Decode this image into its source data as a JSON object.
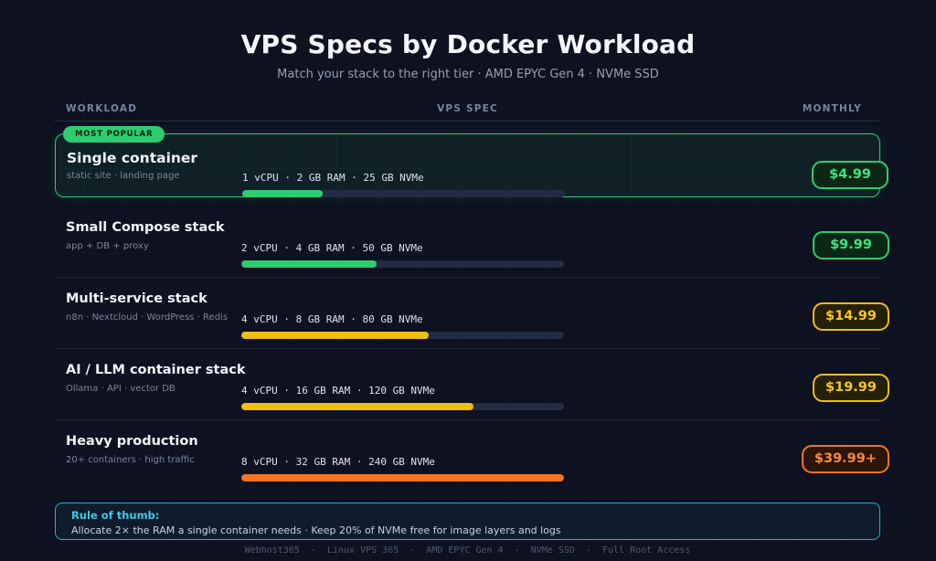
{
  "page": {
    "title": "VPS Specs by Docker Workload",
    "subtitle": "Match your stack to the right tier · AMD EPYC Gen 4 · NVMe SSD",
    "footer": "Webhost365  ·  Linux VPS 365  ·  AMD EPYC Gen 4  ·  NVMe SSD  ·  Full Root Access"
  },
  "table": {
    "headers": {
      "workload": "WORKLOAD",
      "spec": "VPS SPEC",
      "monthly": "MONTHLY"
    },
    "rows": [
      {
        "badge": "MOST POPULAR",
        "name": "Single container",
        "description": "static site · landing page",
        "spec": "1 vCPU · 2 GB RAM · 25 GB NVMe",
        "price": "$4.99",
        "bar_percent": 25,
        "tier": "green",
        "featured": true
      },
      {
        "name": "Small Compose stack",
        "description": "app + DB + proxy",
        "spec": "2 vCPU · 4 GB RAM · 50 GB NVMe",
        "price": "$9.99",
        "bar_percent": 42,
        "tier": "green",
        "featured": false
      },
      {
        "name": "Multi-service stack",
        "description": "n8n · Nextcloud · WordPress · Redis",
        "spec": "4 vCPU · 8 GB RAM · 80 GB NVMe",
        "price": "$14.99",
        "bar_percent": 58,
        "tier": "gold",
        "featured": false
      },
      {
        "name": "AI / LLM container stack",
        "description": "Ollama · API · vector DB",
        "spec": "4 vCPU · 16 GB RAM · 120 GB NVMe",
        "price": "$19.99",
        "bar_percent": 72,
        "tier": "gold",
        "featured": false
      },
      {
        "name": "Heavy production",
        "description": "20+ containers · high traffic",
        "spec": "8 vCPU · 32 GB RAM · 240 GB NVMe",
        "price": "$39.99+",
        "bar_percent": 100,
        "tier": "orange",
        "featured": false
      }
    ]
  },
  "note": {
    "title": "Rule of thumb:",
    "body": "Allocate 2× the RAM a single container needs · Keep 20% of NVMe free for image layers and logs"
  },
  "colors": {
    "green": "#2ecc71",
    "gold": "#eebe13",
    "orange": "#f5741d",
    "green_text": "#3de47e",
    "gold_text": "#f6c71c",
    "orange_text": "#fb8a38",
    "green_bg": "#0b2817",
    "gold_bg": "#262007",
    "orange_bg": "#2a1507"
  },
  "chart_data": {
    "type": "table",
    "title": "VPS Specs by Docker Workload",
    "subtitle": "Match your stack to the right tier · AMD EPYC Gen 4 · NVMe SSD",
    "columns": [
      "WORKLOAD",
      "VPS SPEC",
      "MONTHLY"
    ],
    "rows": [
      {
        "workload": "Single container",
        "use_case": "static site · landing page",
        "vcpu": 1,
        "ram_gb": 2,
        "nvme_gb": 25,
        "monthly_usd": 4.99,
        "bar_percent": 25,
        "bar_color": "#2ecc71",
        "most_popular": true
      },
      {
        "workload": "Small Compose stack",
        "use_case": "app + DB + proxy",
        "vcpu": 2,
        "ram_gb": 4,
        "nvme_gb": 50,
        "monthly_usd": 9.99,
        "bar_percent": 42,
        "bar_color": "#2ecc71",
        "most_popular": false
      },
      {
        "workload": "Multi-service stack",
        "use_case": "n8n · Nextcloud · WordPress · Redis",
        "vcpu": 4,
        "ram_gb": 8,
        "nvme_gb": 80,
        "monthly_usd": 14.99,
        "bar_percent": 58,
        "bar_color": "#eebe13",
        "most_popular": false
      },
      {
        "workload": "AI / LLM container stack",
        "use_case": "Ollama · API · vector DB",
        "vcpu": 4,
        "ram_gb": 16,
        "nvme_gb": 120,
        "monthly_usd": 19.99,
        "bar_percent": 72,
        "bar_color": "#eebe13",
        "most_popular": false
      },
      {
        "workload": "Heavy production",
        "use_case": "20+ containers · high traffic",
        "vcpu": 8,
        "ram_gb": 32,
        "nvme_gb": 240,
        "monthly_usd": 39.99,
        "price_label": "$39.99+",
        "bar_percent": 100,
        "bar_color": "#f5741d",
        "most_popular": false
      }
    ]
  }
}
